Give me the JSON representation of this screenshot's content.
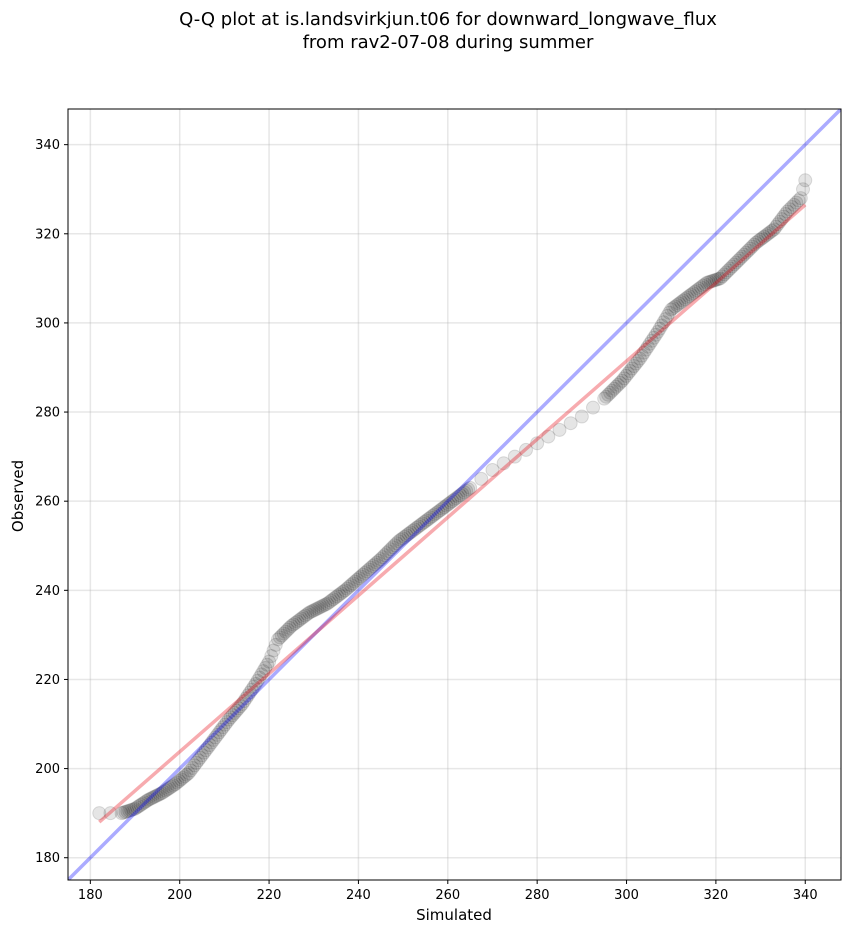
{
  "chart_data": {
    "type": "scatter",
    "title_line1": "Q-Q plot at is.landsvirkjun.t06 for downward_longwave_flux",
    "title_line2": "from rav2-07-08 during summer",
    "xlabel": "Simulated",
    "ylabel": "Observed",
    "xlim": [
      175,
      348
    ],
    "ylim": [
      175,
      348
    ],
    "xticks": [
      180,
      200,
      220,
      240,
      260,
      280,
      300,
      320,
      340
    ],
    "yticks": [
      180,
      200,
      220,
      240,
      260,
      280,
      300,
      320,
      340
    ],
    "grid": true,
    "colors": {
      "points": "#000000",
      "identity_line": "#0000ff",
      "fit_line": "#e8000b"
    },
    "identity_line": {
      "x": [
        175,
        348
      ],
      "y": [
        175,
        348
      ]
    },
    "fit_line": {
      "x": [
        182,
        340
      ],
      "y": [
        188,
        326.5
      ]
    },
    "quantile_curve": [
      [
        182,
        190
      ],
      [
        187,
        190
      ],
      [
        190,
        191
      ],
      [
        193,
        193
      ],
      [
        196,
        194.5
      ],
      [
        199,
        196.5
      ],
      [
        202,
        199
      ],
      [
        205,
        203
      ],
      [
        208,
        207
      ],
      [
        211,
        211
      ],
      [
        214,
        214.5
      ],
      [
        217,
        219
      ],
      [
        220,
        224
      ],
      [
        222,
        229
      ],
      [
        225,
        232
      ],
      [
        229,
        235
      ],
      [
        233,
        237
      ],
      [
        237,
        240
      ],
      [
        241,
        243.5
      ],
      [
        245,
        247
      ],
      [
        249,
        251
      ],
      [
        253,
        254
      ],
      [
        257,
        257
      ],
      [
        261,
        260
      ],
      [
        265,
        263
      ],
      [
        270,
        267
      ],
      [
        275,
        270
      ],
      [
        280,
        273
      ],
      [
        285,
        276
      ],
      [
        290,
        279
      ],
      [
        295,
        283
      ],
      [
        299,
        287
      ],
      [
        303,
        292
      ],
      [
        307,
        298
      ],
      [
        310,
        303
      ],
      [
        314,
        306
      ],
      [
        318,
        309
      ],
      [
        321,
        310
      ],
      [
        325,
        314
      ],
      [
        329,
        318
      ],
      [
        333,
        321
      ],
      [
        336,
        325
      ],
      [
        338,
        327
      ],
      [
        339,
        328
      ],
      [
        340,
        332
      ]
    ]
  }
}
